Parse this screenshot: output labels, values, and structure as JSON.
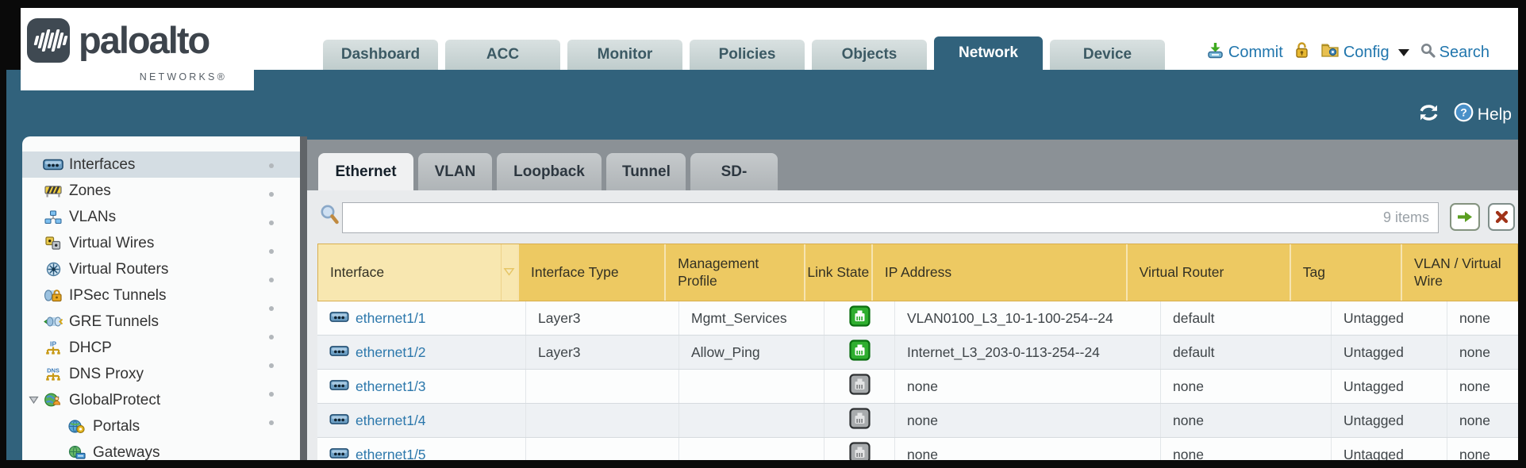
{
  "brand": {
    "name": "paloalto",
    "subtitle": "NETWORKS®"
  },
  "nav": {
    "tabs": [
      {
        "label": "Dashboard",
        "active": false
      },
      {
        "label": "ACC",
        "active": false
      },
      {
        "label": "Monitor",
        "active": false
      },
      {
        "label": "Policies",
        "active": false
      },
      {
        "label": "Objects",
        "active": false
      },
      {
        "label": "Network",
        "active": true
      },
      {
        "label": "Device",
        "active": false
      }
    ],
    "actions": {
      "commit": "Commit",
      "config": "Config",
      "search": "Search"
    }
  },
  "statusbar": {
    "help_label": "Help"
  },
  "sidebar": {
    "items": [
      {
        "label": "Interfaces",
        "icon": "interfaces-icon",
        "selected": true
      },
      {
        "label": "Zones",
        "icon": "zones-icon"
      },
      {
        "label": "VLANs",
        "icon": "vlans-icon"
      },
      {
        "label": "Virtual Wires",
        "icon": "virtual-wires-icon"
      },
      {
        "label": "Virtual Routers",
        "icon": "virtual-routers-icon"
      },
      {
        "label": "IPSec Tunnels",
        "icon": "ipsec-tunnels-icon"
      },
      {
        "label": "GRE Tunnels",
        "icon": "gre-tunnels-icon"
      },
      {
        "label": "DHCP",
        "icon": "dhcp-icon"
      },
      {
        "label": "DNS Proxy",
        "icon": "dns-proxy-icon"
      },
      {
        "label": "GlobalProtect",
        "icon": "globalprotect-icon",
        "expanded": true
      },
      {
        "label": "Portals",
        "icon": "portals-icon",
        "indent": 1
      },
      {
        "label": "Gateways",
        "icon": "gateways-icon",
        "indent": 1
      }
    ]
  },
  "content": {
    "tabs": [
      {
        "label": "Ethernet",
        "active": true
      },
      {
        "label": "VLAN",
        "active": false
      },
      {
        "label": "Loopback",
        "active": false
      },
      {
        "label": "Tunnel",
        "active": false
      },
      {
        "label": "SD-WAN",
        "active": false
      }
    ],
    "filter": {
      "value": "",
      "placeholder": "",
      "items_count": "9 items"
    },
    "table": {
      "columns": [
        {
          "id": "interface",
          "label": "Interface",
          "sorted": true
        },
        {
          "id": "type",
          "label": "Interface Type"
        },
        {
          "id": "profile",
          "label": "Management Profile"
        },
        {
          "id": "link",
          "label": "Link State"
        },
        {
          "id": "ip",
          "label": "IP Address"
        },
        {
          "id": "vr",
          "label": "Virtual Router"
        },
        {
          "id": "tag",
          "label": "Tag"
        },
        {
          "id": "vlan",
          "label": "VLAN / Virtual Wire"
        }
      ],
      "rows": [
        {
          "interface": "ethernet1/1",
          "type": "Layer3",
          "profile": "Mgmt_Services",
          "link": "up",
          "ip": "VLAN0100_L3_10-1-100-254--24",
          "vr": "default",
          "tag": "Untagged",
          "vlan": "none"
        },
        {
          "interface": "ethernet1/2",
          "type": "Layer3",
          "profile": "Allow_Ping",
          "link": "up",
          "ip": "Internet_L3_203-0-113-254--24",
          "vr": "default",
          "tag": "Untagged",
          "vlan": "none"
        },
        {
          "interface": "ethernet1/3",
          "type": "",
          "profile": "",
          "link": "down",
          "ip": "none",
          "vr": "none",
          "tag": "Untagged",
          "vlan": "none"
        },
        {
          "interface": "ethernet1/4",
          "type": "",
          "profile": "",
          "link": "down",
          "ip": "none",
          "vr": "none",
          "tag": "Untagged",
          "vlan": "none"
        },
        {
          "interface": "ethernet1/5",
          "type": "",
          "profile": "",
          "link": "down",
          "ip": "none",
          "vr": "none",
          "tag": "Untagged",
          "vlan": "none"
        }
      ]
    }
  },
  "colors": {
    "teal": "#31627c",
    "header_gold": "#edc962",
    "header_gold_sorted": "#f8e7b0",
    "link_blue": "#2b77ab",
    "link_up_green": "#2fae2f",
    "link_down_gray": "#9fa3a5",
    "action_blue": "#2176ad"
  }
}
